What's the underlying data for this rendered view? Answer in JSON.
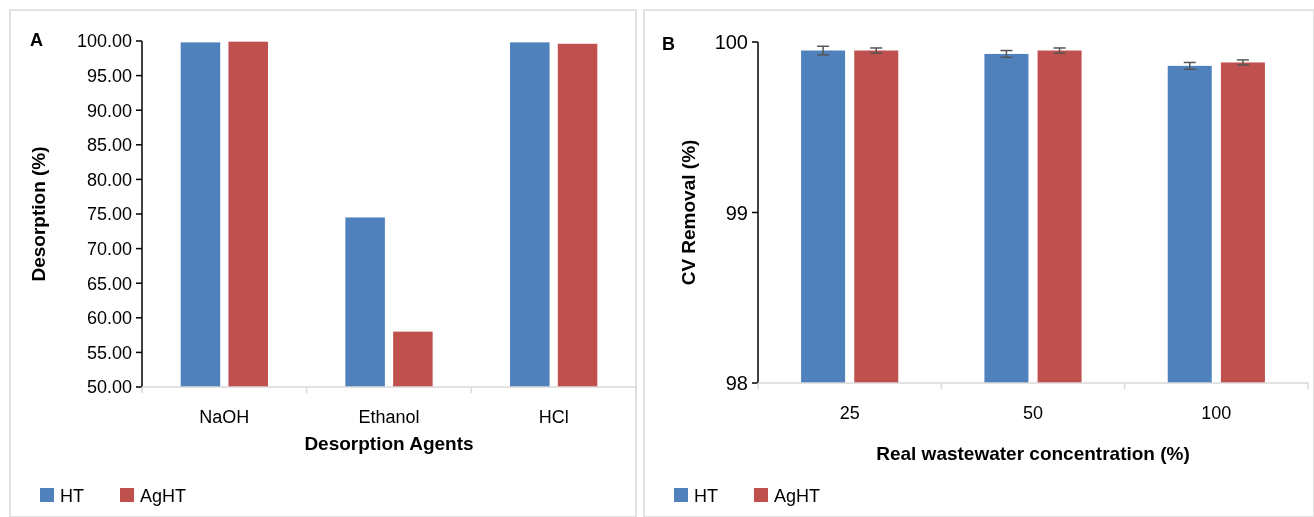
{
  "chart_data": [
    {
      "type": "bar",
      "annotations": [
        "A"
      ],
      "xlabel": "Desorption Agents",
      "ylabel": "Desorption (%)",
      "categories": [
        "NaOH",
        "Ethanol",
        "HCl"
      ],
      "series": [
        {
          "name": "HT",
          "color": "#4f81bd",
          "values": [
            99.8,
            74.5,
            99.8
          ]
        },
        {
          "name": "AgHT",
          "color": "#c0504d",
          "values": [
            99.9,
            58.0,
            99.6
          ]
        }
      ],
      "ylim": [
        50,
        100
      ],
      "yticks": [
        {
          "value": 50,
          "label": "50.00"
        },
        {
          "value": 55,
          "label": "55.00"
        },
        {
          "value": 60,
          "label": "60.00"
        },
        {
          "value": 65,
          "label": "65.00"
        },
        {
          "value": 70,
          "label": "70.00"
        },
        {
          "value": 75,
          "label": "75.00"
        },
        {
          "value": 80,
          "label": "80.00"
        },
        {
          "value": 85,
          "label": "85.00"
        },
        {
          "value": 90,
          "label": "90.00"
        },
        {
          "value": 95,
          "label": "95.00"
        },
        {
          "value": 100,
          "label": "100.00"
        }
      ],
      "grid": false,
      "legend": "bottom left"
    },
    {
      "type": "bar",
      "annotations": [
        "B"
      ],
      "xlabel": "Real wastewater concentration (%)",
      "ylabel": "CV Removal (%)",
      "categories": [
        "25",
        "50",
        "100"
      ],
      "series": [
        {
          "name": "HT",
          "color": "#4f81bd",
          "values": [
            99.95,
            99.93,
            99.86
          ],
          "errors": [
            0.025,
            0.02,
            0.02
          ]
        },
        {
          "name": "AgHT",
          "color": "#c0504d",
          "values": [
            99.95,
            99.95,
            99.88
          ],
          "errors": [
            0.015,
            0.015,
            0.015
          ]
        }
      ],
      "ylim": [
        98,
        100
      ],
      "yticks": [
        98,
        99,
        100
      ],
      "grid": false,
      "legend": "bottom left"
    }
  ]
}
